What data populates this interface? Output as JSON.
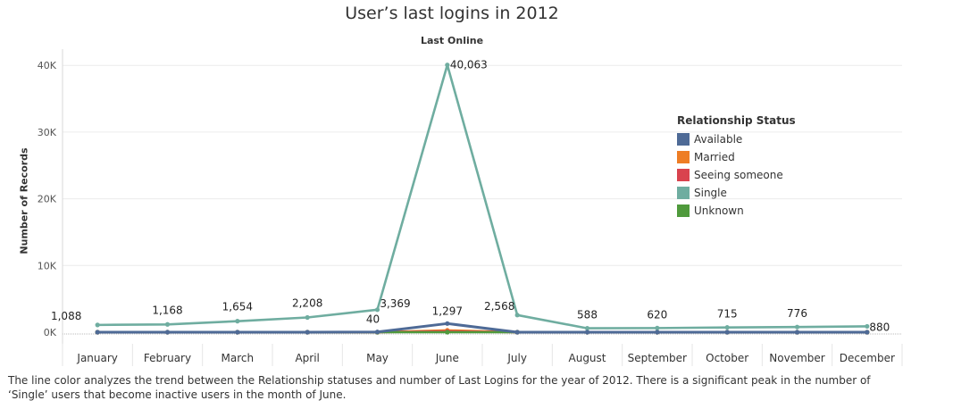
{
  "chart_data": {
    "type": "line",
    "title": "User’s last logins in 2012",
    "subtitle": "Last Online",
    "ylabel": "Number of Records",
    "xlabel": "",
    "ylim": [
      0,
      42000
    ],
    "y_ticks": [
      0,
      10000,
      20000,
      30000,
      40000
    ],
    "y_tick_labels": [
      "0K",
      "10K",
      "20K",
      "30K",
      "40K"
    ],
    "grid": true,
    "legend_position": "right",
    "categories": [
      "January",
      "February",
      "March",
      "April",
      "May",
      "June",
      "July",
      "August",
      "September",
      "October",
      "November",
      "December"
    ],
    "series": [
      {
        "name": "Single",
        "color": "#6fada0",
        "values": [
          1088,
          1168,
          1654,
          2208,
          3369,
          40063,
          2568,
          588,
          620,
          715,
          776,
          880
        ],
        "labels": [
          "1,088",
          "1,168",
          "1,654",
          "2,208",
          "3,369",
          "40,063",
          "2,568",
          "588",
          "620",
          "715",
          "776",
          "880"
        ]
      },
      {
        "name": "Available",
        "color": "#4e6a96",
        "values": [
          0,
          0,
          0,
          0,
          40,
          1297,
          0,
          0,
          0,
          0,
          0,
          0
        ],
        "labels": [
          "",
          "",
          "",
          "",
          "40",
          "1,297",
          "",
          "",
          "",
          "",
          "",
          ""
        ]
      },
      {
        "name": "Married",
        "color": "#ee7d24",
        "values": [
          0,
          0,
          0,
          0,
          0,
          280,
          0,
          0,
          0,
          0,
          0,
          0
        ],
        "labels": [
          "",
          "",
          "",
          "",
          "",
          "",
          "",
          "",
          "",
          "",
          "",
          ""
        ]
      },
      {
        "name": "Seeing someone",
        "color": "#d9434e",
        "values": [
          0,
          0,
          0,
          0,
          0,
          120,
          0,
          0,
          0,
          0,
          0,
          0
        ],
        "labels": [
          "",
          "",
          "",
          "",
          "",
          "",
          "",
          "",
          "",
          "",
          "",
          ""
        ]
      },
      {
        "name": "Unknown",
        "color": "#4f9a3c",
        "values": [
          0,
          0,
          0,
          0,
          0,
          0,
          0,
          0,
          0,
          0,
          0,
          0
        ],
        "labels": [
          "",
          "",
          "",
          "",
          "",
          "",
          "",
          "",
          "",
          "",
          "",
          ""
        ]
      }
    ]
  },
  "legend": {
    "title": "Relationship Status",
    "items": [
      {
        "label": "Available",
        "color": "#4e6a96"
      },
      {
        "label": "Married",
        "color": "#ee7d24"
      },
      {
        "label": "Seeing someone",
        "color": "#d9434e"
      },
      {
        "label": "Single",
        "color": "#6fada0"
      },
      {
        "label": "Unknown",
        "color": "#4f9a3c"
      }
    ]
  },
  "caption": "The line color analyzes the trend between the Relationship statuses and number of Last Logins for the year of 2012. There is a significant peak in the number of ‘Single’ users that become inactive users in the month of June."
}
